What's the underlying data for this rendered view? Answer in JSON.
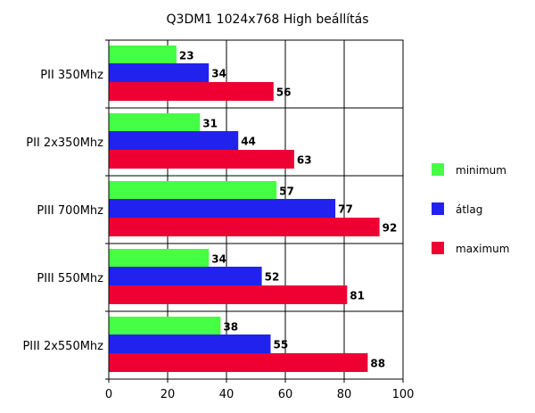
{
  "chart_data": {
    "type": "bar",
    "orientation": "horizontal",
    "title": "Q3DM1 1024x768 High beállítás",
    "categories": [
      "PII 350Mhz",
      "PII 2x350Mhz",
      "PIII 700Mhz",
      "PIII 550Mhz",
      "PIII 2x550Mhz"
    ],
    "series": [
      {
        "name": "minimum",
        "color": "#44ff44",
        "values": [
          23,
          31,
          57,
          34,
          38
        ]
      },
      {
        "name": "átlag",
        "color": "#2222ee",
        "values": [
          34,
          44,
          77,
          52,
          55
        ]
      },
      {
        "name": "maximum",
        "color": "#ee0033",
        "values": [
          56,
          63,
          92,
          81,
          88
        ]
      }
    ],
    "xlim": [
      0,
      100
    ],
    "xticks": [
      0,
      20,
      40,
      60,
      80,
      100
    ],
    "grid": true,
    "legend_position": "right"
  }
}
